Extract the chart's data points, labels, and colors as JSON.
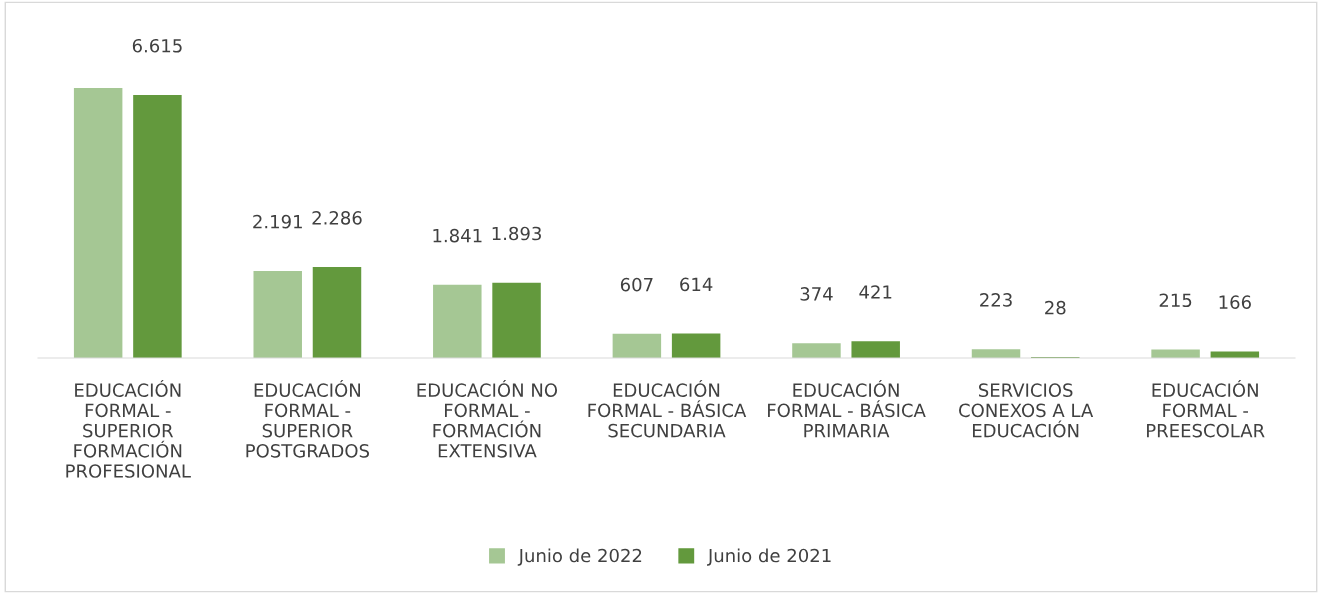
{
  "chart_data": {
    "type": "bar",
    "categories": [
      "EDUCACIÓN FORMAL - SUPERIOR FORMACIÓN PROFESIONAL",
      "EDUCACIÓN FORMAL - SUPERIOR POSTGRADOS",
      "EDUCACIÓN NO FORMAL - FORMACIÓN EXTENSIVA",
      "EDUCACIÓN FORMAL - BÁSICA SECUNDARIA",
      "EDUCACIÓN FORMAL - BÁSICA PRIMARIA",
      "SERVICIOS CONEXOS A LA EDUCACIÓN",
      "EDUCACIÓN FORMAL - PREESCOLAR"
    ],
    "series": [
      {
        "name": "Junio de 2022",
        "color": "#a5c794",
        "values": [
          6790,
          2191,
          1841,
          607,
          374,
          223,
          215
        ],
        "value_labels": [
          null,
          "2.191",
          "1.841",
          "607",
          "374",
          "223",
          "215"
        ]
      },
      {
        "name": "Junio de 2021",
        "color": "#63993d",
        "values": [
          6615,
          2286,
          1893,
          614,
          421,
          28,
          166
        ],
        "value_labels": [
          "6.615",
          "2.286",
          "1.893",
          "614",
          "421",
          "28",
          "166"
        ]
      }
    ],
    "legend": "bottom",
    "grid": false
  }
}
